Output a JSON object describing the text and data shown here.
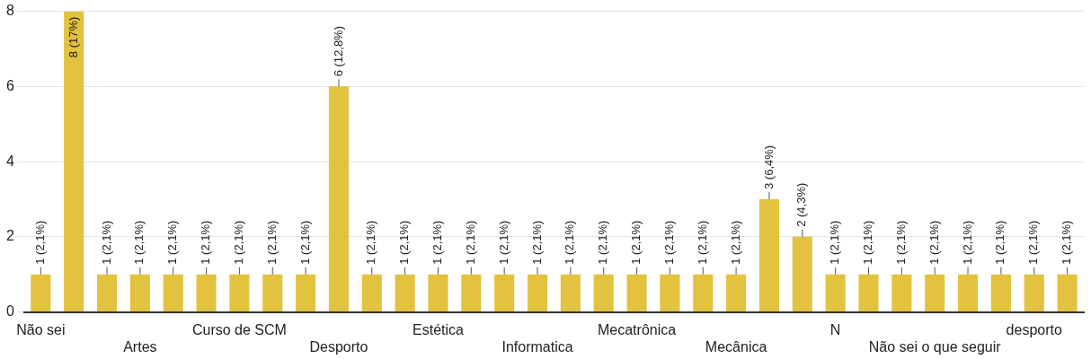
{
  "chart_data": {
    "type": "bar",
    "categories": [
      "Não sei",
      null,
      null,
      "Artes",
      null,
      null,
      "Curso de SCM",
      null,
      null,
      "Desporto",
      null,
      null,
      "Estética",
      null,
      null,
      "Informatica",
      null,
      null,
      "Mecatrônica",
      null,
      null,
      "Mecânica",
      null,
      null,
      "N",
      null,
      null,
      "Não sei o que seguir",
      null,
      null,
      "desporto",
      null
    ],
    "values": [
      1,
      8,
      1,
      1,
      1,
      1,
      1,
      1,
      1,
      6,
      1,
      1,
      1,
      1,
      1,
      1,
      1,
      1,
      1,
      1,
      1,
      1,
      3,
      2,
      1,
      1,
      1,
      1,
      1,
      1,
      1,
      1
    ],
    "value_labels": [
      "1 (2,1%)",
      "8 (17%)",
      "1 (2,1%)",
      "1 (2,1%)",
      "1 (2,1%)",
      "1 (2,1%)",
      "1 (2,1%)",
      "1 (2,1%)",
      "1 (2,1%)",
      "6 (12,8%)",
      "1 (2,1%)",
      "1 (2,1%)",
      "1 (2,1%)",
      "1 (2,1%)",
      "1 (2,1%)",
      "1 (2,1%)",
      "1 (2,1%)",
      "1 (2,1%)",
      "1 (2,1%)",
      "1 (2,1%)",
      "1 (2,1%)",
      "1 (2,1%)",
      "3 (6,4%)",
      "2 (4,3%)",
      "1 (2,1%)",
      "1 (2,1%)",
      "1 (2,1%)",
      "1 (2,1%)",
      "1 (2,1%)",
      "1 (2,1%)",
      "1 (2,1%)",
      "1 (2,1%)"
    ],
    "color": "#e2c23f",
    "ylim": [
      0,
      8
    ],
    "yticks": [
      0,
      2,
      4,
      6,
      8
    ],
    "grid": "y",
    "legend": false
  }
}
